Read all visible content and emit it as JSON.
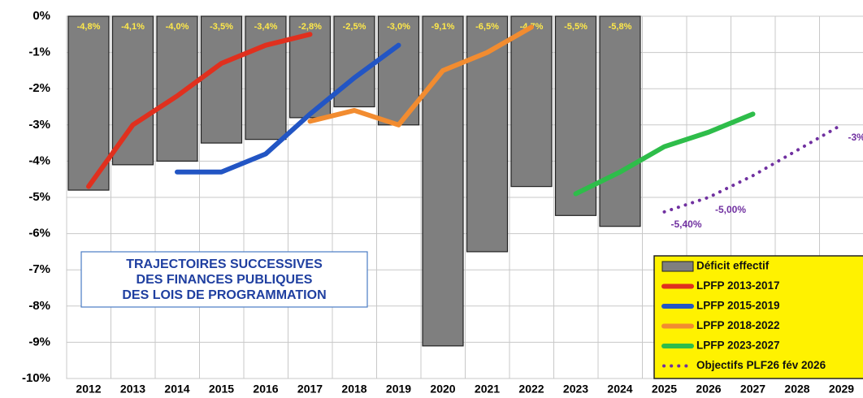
{
  "chart_data": {
    "type": "bar",
    "categories": [
      "2012",
      "2013",
      "2014",
      "2015",
      "2016",
      "2017",
      "2018",
      "2019",
      "2020",
      "2021",
      "2022",
      "2023",
      "2024",
      "2025",
      "2026",
      "2027",
      "2028",
      "2029"
    ],
    "ylim": [
      -10,
      0
    ],
    "yticks": [
      {
        "value": 0,
        "label": "0%"
      },
      {
        "value": -1,
        "label": "-1%"
      },
      {
        "value": -2,
        "label": "-2%"
      },
      {
        "value": -3,
        "label": "-3%"
      },
      {
        "value": -4,
        "label": "-4%"
      },
      {
        "value": -5,
        "label": "-5%"
      },
      {
        "value": -6,
        "label": "-6%"
      },
      {
        "value": -7,
        "label": "-7%"
      },
      {
        "value": -8,
        "label": "-8%"
      },
      {
        "value": -9,
        "label": "-9%"
      },
      {
        "value": -10,
        "label": "-10%"
      }
    ],
    "grid": true,
    "annotation": [
      "TRAJECTOIRES SUCCESSIVES",
      "DES FINANCES PUBLIQUES",
      "DES LOIS DE PROGRAMMATION"
    ],
    "legend": "lower right",
    "series": [
      {
        "name": "Déficit effectif",
        "type": "bar",
        "color": "#7f7f7f",
        "values": [
          -4.8,
          -4.1,
          -4.0,
          -3.5,
          -3.4,
          -2.8,
          -2.5,
          -3.0,
          -9.1,
          -6.5,
          -4.7,
          -5.5,
          -5.8,
          null,
          null,
          null,
          null,
          null
        ],
        "value_labels": [
          "-4,8%",
          "-4,1%",
          "-4,0%",
          "-3,5%",
          "-3,4%",
          "-2,8%",
          "-2,5%",
          "-3,0%",
          "-9,1%",
          "-6,5%",
          "-4,7%",
          "-5,5%",
          "-5,8%",
          null,
          null,
          null,
          null,
          null
        ]
      },
      {
        "name": "LPFP 2013-2017",
        "type": "line",
        "color": "#e0301e",
        "values": [
          -4.7,
          -3.0,
          -2.2,
          -1.3,
          -0.8,
          -0.5,
          null,
          null,
          null,
          null,
          null,
          null,
          null,
          null,
          null,
          null,
          null,
          null
        ]
      },
      {
        "name": "LPFP 2015-2019",
        "type": "line",
        "color": "#2255c4",
        "values": [
          null,
          null,
          -4.3,
          -4.3,
          -3.8,
          -2.7,
          -1.7,
          -0.8,
          null,
          null,
          null,
          null,
          null,
          null,
          null,
          null,
          null,
          null
        ]
      },
      {
        "name": "LPFP 2018-2022",
        "type": "line",
        "color": "#f28c30",
        "values": [
          null,
          null,
          null,
          null,
          null,
          -2.9,
          -2.6,
          -3.0,
          -1.5,
          -1.0,
          -0.3,
          null,
          null,
          null,
          null,
          null,
          null,
          null
        ]
      },
      {
        "name": "LPFP  2023-2027",
        "type": "line",
        "color": "#2ebd4a",
        "values": [
          null,
          null,
          null,
          null,
          null,
          null,
          null,
          null,
          null,
          null,
          null,
          -4.9,
          -4.3,
          -3.6,
          -3.2,
          -2.7,
          null,
          null
        ]
      },
      {
        "name": "Objectifs PLF26 fév 2026",
        "type": "line",
        "style": "dotted",
        "color": "#7030a0",
        "values": [
          null,
          null,
          null,
          null,
          null,
          null,
          null,
          null,
          null,
          null,
          null,
          null,
          null,
          -5.4,
          -5.0,
          -4.4,
          -3.7,
          -3.0
        ],
        "value_labels": [
          null,
          null,
          null,
          null,
          null,
          null,
          null,
          null,
          null,
          null,
          null,
          null,
          null,
          "-5,40%",
          "-5,00%",
          null,
          null,
          "-3%"
        ]
      }
    ]
  }
}
